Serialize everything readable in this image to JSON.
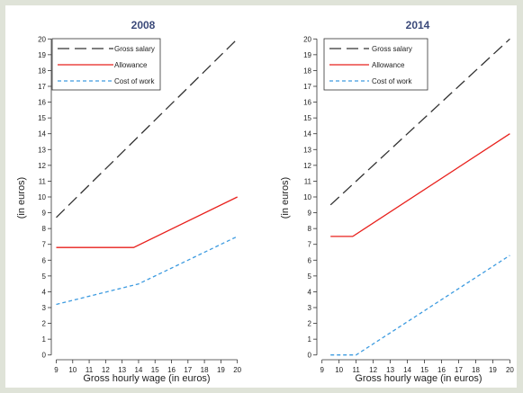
{
  "chart_data": [
    {
      "type": "line",
      "title": "2008",
      "xlabel": "Gross hourly wage (in euros)",
      "ylabel": "(in euros)",
      "xlim": [
        8.7,
        20.4
      ],
      "ylim": [
        -0.3,
        20.3
      ],
      "x_ticks": [
        9,
        10,
        11,
        12,
        13,
        14,
        15,
        16,
        17,
        18,
        19,
        20
      ],
      "y_ticks": [
        0,
        1,
        2,
        3,
        4,
        5,
        6,
        7,
        8,
        9,
        10,
        11,
        12,
        13,
        14,
        15,
        16,
        17,
        18,
        19,
        20
      ],
      "legend_position": "top-left",
      "series": [
        {
          "name": "Gross salary",
          "color": "#333333",
          "style": "long-dash",
          "x": [
            9,
            20
          ],
          "y": [
            8.7,
            20
          ]
        },
        {
          "name": "Allowance",
          "color": "#e8201c",
          "style": "solid",
          "x": [
            9,
            13.7,
            20
          ],
          "y": [
            6.8,
            6.8,
            10
          ]
        },
        {
          "name": "Cost of work",
          "color": "#3d9be0",
          "style": "short-dash",
          "x": [
            9,
            14,
            20
          ],
          "y": [
            3.2,
            4.5,
            7.5
          ]
        }
      ]
    },
    {
      "type": "line",
      "title": "2014",
      "xlabel": "Gross hourly wage (in euros)",
      "ylabel": "(in euros)",
      "xlim": [
        8.7,
        20.4
      ],
      "ylim": [
        -0.3,
        20.3
      ],
      "x_ticks": [
        9,
        10,
        11,
        12,
        13,
        14,
        15,
        16,
        17,
        18,
        19,
        20
      ],
      "y_ticks": [
        0,
        1,
        2,
        3,
        4,
        5,
        6,
        7,
        8,
        9,
        10,
        11,
        12,
        13,
        14,
        15,
        16,
        17,
        18,
        19,
        20
      ],
      "legend_position": "top-left",
      "series": [
        {
          "name": "Gross salary",
          "color": "#333333",
          "style": "long-dash",
          "x": [
            9.5,
            20
          ],
          "y": [
            9.5,
            20
          ]
        },
        {
          "name": "Allowance",
          "color": "#e8201c",
          "style": "solid",
          "x": [
            9.5,
            10.8,
            20
          ],
          "y": [
            7.5,
            7.5,
            14
          ]
        },
        {
          "name": "Cost of work",
          "color": "#3d9be0",
          "style": "short-dash",
          "x": [
            9.5,
            11,
            20
          ],
          "y": [
            0,
            0,
            6.3
          ]
        }
      ]
    }
  ]
}
